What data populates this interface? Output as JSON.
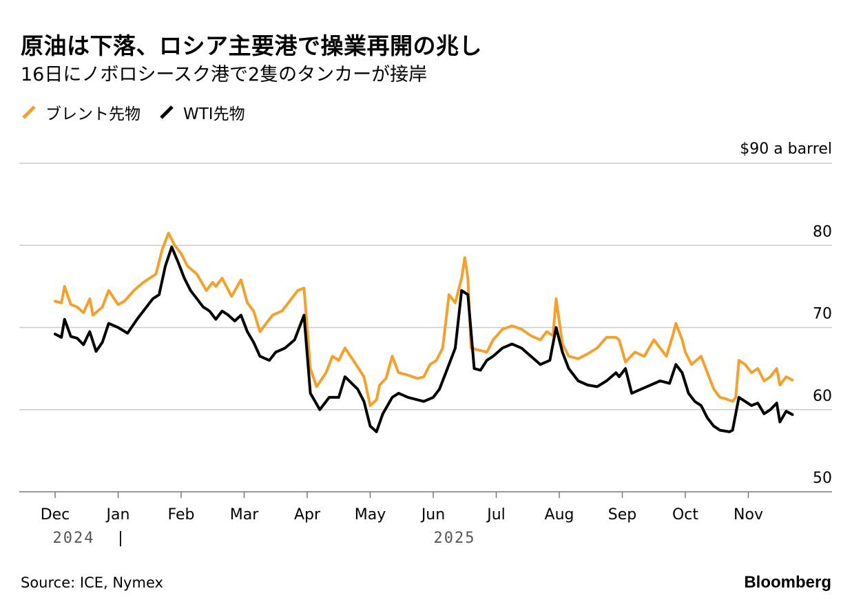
{
  "chart_data": {
    "type": "line",
    "title": "原油は下落、ロシア主要港で操業再開の兆し",
    "subtitle": "16日にノボロシースク港で2隻のタンカーが接岸",
    "y_unit_label": "$90 a barrel",
    "ylim": [
      50,
      90
    ],
    "y_ticks": [
      "80",
      "70",
      "60",
      "50"
    ],
    "x_ticks": [
      "Dec",
      "Jan",
      "Feb",
      "Mar",
      "Apr",
      "May",
      "Jun",
      "Jul",
      "Aug",
      "Sep",
      "Oct",
      "Nov"
    ],
    "year_labels": [
      "2024",
      "|",
      "2025"
    ],
    "grid": true,
    "legend_position": "top-left",
    "series": [
      {
        "name": "ブレント先物",
        "color": "#f5a02c",
        "points": [
          [
            0.0,
            73.2
          ],
          [
            0.1,
            73.0
          ],
          [
            0.15,
            75.0
          ],
          [
            0.25,
            72.8
          ],
          [
            0.35,
            72.5
          ],
          [
            0.45,
            71.8
          ],
          [
            0.55,
            73.5
          ],
          [
            0.6,
            71.5
          ],
          [
            0.75,
            72.5
          ],
          [
            0.85,
            74.5
          ],
          [
            1.0,
            72.8
          ],
          [
            1.1,
            73.2
          ],
          [
            1.25,
            74.5
          ],
          [
            1.4,
            75.5
          ],
          [
            1.5,
            76.0
          ],
          [
            1.6,
            76.5
          ],
          [
            1.7,
            79.5
          ],
          [
            1.8,
            81.5
          ],
          [
            1.9,
            80.0
          ],
          [
            2.0,
            79.0
          ],
          [
            2.1,
            77.5
          ],
          [
            2.25,
            76.5
          ],
          [
            2.4,
            74.5
          ],
          [
            2.5,
            75.5
          ],
          [
            2.55,
            75.0
          ],
          [
            2.65,
            76.0
          ],
          [
            2.8,
            73.8
          ],
          [
            2.95,
            75.8
          ],
          [
            3.05,
            73.0
          ],
          [
            3.15,
            72.0
          ],
          [
            3.25,
            69.5
          ],
          [
            3.35,
            70.5
          ],
          [
            3.45,
            71.5
          ],
          [
            3.6,
            72.0
          ],
          [
            3.75,
            73.5
          ],
          [
            3.85,
            74.5
          ],
          [
            3.95,
            74.8
          ],
          [
            4.05,
            65.0
          ],
          [
            4.15,
            62.8
          ],
          [
            4.3,
            64.5
          ],
          [
            4.4,
            66.5
          ],
          [
            4.5,
            66.0
          ],
          [
            4.6,
            67.5
          ],
          [
            4.75,
            65.8
          ],
          [
            4.9,
            64.0
          ],
          [
            5.0,
            60.5
          ],
          [
            5.1,
            61.2
          ],
          [
            5.15,
            63.0
          ],
          [
            5.25,
            63.8
          ],
          [
            5.35,
            66.5
          ],
          [
            5.45,
            64.5
          ],
          [
            5.6,
            64.2
          ],
          [
            5.75,
            63.8
          ],
          [
            5.85,
            64.0
          ],
          [
            5.95,
            65.5
          ],
          [
            6.05,
            66.0
          ],
          [
            6.15,
            67.5
          ],
          [
            6.25,
            74.0
          ],
          [
            6.35,
            73.0
          ],
          [
            6.45,
            76.0
          ],
          [
            6.5,
            78.5
          ],
          [
            6.55,
            76.0
          ],
          [
            6.6,
            67.5
          ],
          [
            6.75,
            67.2
          ],
          [
            6.85,
            67.0
          ],
          [
            6.95,
            68.5
          ],
          [
            7.1,
            69.8
          ],
          [
            7.25,
            70.2
          ],
          [
            7.4,
            69.8
          ],
          [
            7.55,
            69.0
          ],
          [
            7.7,
            68.5
          ],
          [
            7.8,
            69.5
          ],
          [
            7.9,
            69.0
          ],
          [
            7.95,
            73.5
          ],
          [
            8.05,
            68.0
          ],
          [
            8.15,
            66.5
          ],
          [
            8.3,
            66.2
          ],
          [
            8.45,
            66.8
          ],
          [
            8.6,
            67.5
          ],
          [
            8.75,
            68.8
          ],
          [
            8.9,
            68.8
          ],
          [
            8.95,
            68.5
          ],
          [
            9.05,
            65.8
          ],
          [
            9.2,
            67.0
          ],
          [
            9.35,
            66.5
          ],
          [
            9.5,
            68.5
          ],
          [
            9.6,
            67.5
          ],
          [
            9.7,
            66.5
          ],
          [
            9.8,
            69.0
          ],
          [
            9.85,
            70.5
          ],
          [
            9.95,
            68.5
          ],
          [
            10.0,
            67.0
          ],
          [
            10.1,
            65.5
          ],
          [
            10.25,
            66.5
          ],
          [
            10.35,
            64.5
          ],
          [
            10.45,
            62.5
          ],
          [
            10.55,
            61.5
          ],
          [
            10.65,
            61.3
          ],
          [
            10.75,
            61.0
          ],
          [
            10.8,
            61.5
          ],
          [
            10.85,
            66.0
          ],
          [
            10.95,
            65.5
          ],
          [
            11.05,
            64.5
          ],
          [
            11.15,
            65.0
          ],
          [
            11.25,
            63.5
          ],
          [
            11.35,
            64.0
          ],
          [
            11.45,
            65.0
          ],
          [
            11.5,
            63.0
          ],
          [
            11.6,
            64.0
          ],
          [
            11.7,
            63.6
          ]
        ]
      },
      {
        "name": "WTI先物",
        "color": "#000000",
        "points": [
          [
            0.0,
            69.2
          ],
          [
            0.1,
            68.8
          ],
          [
            0.15,
            71.0
          ],
          [
            0.25,
            68.9
          ],
          [
            0.35,
            68.7
          ],
          [
            0.45,
            67.9
          ],
          [
            0.55,
            69.5
          ],
          [
            0.65,
            67.1
          ],
          [
            0.75,
            68.2
          ],
          [
            0.85,
            70.5
          ],
          [
            1.0,
            70.0
          ],
          [
            1.15,
            69.3
          ],
          [
            1.3,
            71.0
          ],
          [
            1.45,
            72.5
          ],
          [
            1.55,
            73.5
          ],
          [
            1.65,
            74.0
          ],
          [
            1.75,
            77.5
          ],
          [
            1.85,
            79.8
          ],
          [
            1.95,
            78.0
          ],
          [
            2.05,
            76.0
          ],
          [
            2.15,
            74.5
          ],
          [
            2.25,
            73.5
          ],
          [
            2.35,
            72.5
          ],
          [
            2.45,
            72.0
          ],
          [
            2.55,
            71.0
          ],
          [
            2.65,
            72.0
          ],
          [
            2.75,
            71.5
          ],
          [
            2.85,
            70.8
          ],
          [
            2.95,
            71.5
          ],
          [
            3.05,
            69.5
          ],
          [
            3.15,
            68.2
          ],
          [
            3.25,
            66.5
          ],
          [
            3.4,
            66.0
          ],
          [
            3.5,
            67.0
          ],
          [
            3.65,
            67.5
          ],
          [
            3.8,
            68.5
          ],
          [
            3.95,
            71.5
          ],
          [
            4.05,
            62.0
          ],
          [
            4.2,
            60.0
          ],
          [
            4.35,
            61.5
          ],
          [
            4.5,
            61.5
          ],
          [
            4.6,
            64.0
          ],
          [
            4.8,
            62.5
          ],
          [
            4.9,
            61.0
          ],
          [
            5.0,
            58.0
          ],
          [
            5.1,
            57.3
          ],
          [
            5.2,
            59.5
          ],
          [
            5.35,
            61.5
          ],
          [
            5.45,
            62.0
          ],
          [
            5.6,
            61.5
          ],
          [
            5.75,
            61.2
          ],
          [
            5.85,
            61.0
          ],
          [
            6.0,
            61.5
          ],
          [
            6.1,
            62.5
          ],
          [
            6.2,
            64.5
          ],
          [
            6.35,
            67.5
          ],
          [
            6.45,
            74.5
          ],
          [
            6.55,
            74.0
          ],
          [
            6.65,
            65.0
          ],
          [
            6.75,
            64.8
          ],
          [
            6.85,
            66.0
          ],
          [
            6.95,
            66.5
          ],
          [
            7.1,
            67.5
          ],
          [
            7.25,
            68.0
          ],
          [
            7.4,
            67.5
          ],
          [
            7.55,
            66.5
          ],
          [
            7.7,
            65.5
          ],
          [
            7.85,
            66.0
          ],
          [
            7.95,
            70.0
          ],
          [
            8.05,
            67.0
          ],
          [
            8.15,
            65.0
          ],
          [
            8.3,
            63.5
          ],
          [
            8.45,
            63.0
          ],
          [
            8.6,
            62.8
          ],
          [
            8.75,
            63.5
          ],
          [
            8.9,
            64.5
          ],
          [
            8.95,
            64.0
          ],
          [
            9.05,
            65.0
          ],
          [
            9.15,
            62.0
          ],
          [
            9.3,
            62.5
          ],
          [
            9.45,
            63.0
          ],
          [
            9.6,
            63.5
          ],
          [
            9.75,
            63.2
          ],
          [
            9.85,
            65.5
          ],
          [
            9.95,
            64.5
          ],
          [
            10.05,
            62.0
          ],
          [
            10.15,
            61.0
          ],
          [
            10.25,
            60.5
          ],
          [
            10.35,
            59.0
          ],
          [
            10.45,
            58.0
          ],
          [
            10.55,
            57.5
          ],
          [
            10.7,
            57.3
          ],
          [
            10.75,
            57.5
          ],
          [
            10.85,
            61.5
          ],
          [
            10.95,
            61.0
          ],
          [
            11.05,
            60.5
          ],
          [
            11.15,
            60.8
          ],
          [
            11.25,
            59.5
          ],
          [
            11.35,
            60.0
          ],
          [
            11.45,
            60.8
          ],
          [
            11.5,
            58.5
          ],
          [
            11.6,
            59.8
          ],
          [
            11.7,
            59.4
          ]
        ]
      }
    ],
    "source": "Source: ICE, Nymex",
    "brand": "Bloomberg"
  }
}
